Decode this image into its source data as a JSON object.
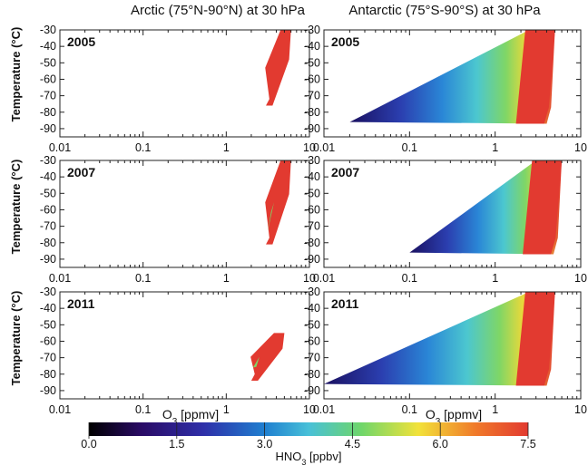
{
  "chart_data": {
    "type": "scatter",
    "title_left": "Arctic (75°N-90°N) at 30 hPa",
    "title_right": "Antarctic (75°S-90°S) at 30 hPa",
    "ylabel": "Temperature (°C)",
    "xlabel_base": "O",
    "xlabel_sub": "3",
    "xlabel_unit": " [ppmv]",
    "x_scale": "log",
    "xlim": [
      0.01,
      10
    ],
    "ylim": [
      -95,
      -30
    ],
    "x_ticks": [
      "0.01",
      "0.1",
      "1",
      "10"
    ],
    "y_ticks": [
      "-30",
      "-40",
      "-50",
      "-60",
      "-70",
      "-80",
      "-90"
    ],
    "colorbar": {
      "label_base": "HNO",
      "label_sub": "3",
      "label_unit": " [ppbv]",
      "ticks": [
        "0.0",
        "1.5",
        "3.0",
        "4.5",
        "6.0",
        "7.5"
      ],
      "range": [
        0,
        7.5
      ],
      "colors": [
        "#000000",
        "#2a0b66",
        "#2e2fa8",
        "#1f7fd0",
        "#48c0d8",
        "#6fd66a",
        "#f2e23a",
        "#f07a2a",
        "#e23a30"
      ]
    },
    "panels": [
      {
        "region": "Arctic",
        "year": "2005",
        "o3_range": [
          3,
          6
        ],
        "t_range": [
          -76,
          -30
        ],
        "dominant_hno3": 7.5
      },
      {
        "region": "Antarctic",
        "year": "2005",
        "o3_range": [
          0.02,
          5
        ],
        "t_range": [
          -87,
          -30
        ],
        "dominant_hno3": 7.5
      },
      {
        "region": "Arctic",
        "year": "2007",
        "o3_range": [
          3,
          6
        ],
        "t_range": [
          -81,
          -30
        ],
        "dominant_hno3": 7.5
      },
      {
        "region": "Antarctic",
        "year": "2007",
        "o3_range": [
          0.1,
          6
        ],
        "t_range": [
          -87,
          -30
        ],
        "dominant_hno3": 7.5
      },
      {
        "region": "Arctic",
        "year": "2011",
        "o3_range": [
          2,
          5
        ],
        "t_range": [
          -84,
          -55
        ],
        "dominant_hno3": 7.5
      },
      {
        "region": "Antarctic",
        "year": "2011",
        "o3_range": [
          0.01,
          5
        ],
        "t_range": [
          -87,
          -30
        ],
        "dominant_hno3": 7.5
      }
    ]
  }
}
